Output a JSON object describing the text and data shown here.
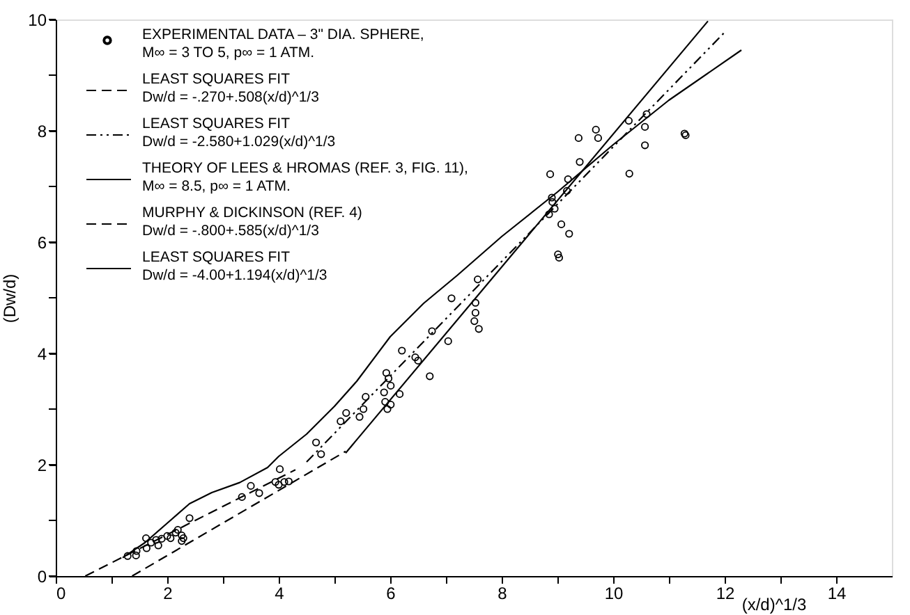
{
  "chart_data": {
    "type": "scatter",
    "xlabel": "(x/d)^1/3",
    "ylabel": "(Dw/d)",
    "xlim": [
      0,
      15
    ],
    "ylim": [
      0,
      10
    ],
    "xticks": [
      0,
      {
        "value": 1,
        "label": null
      },
      2,
      {
        "value": 3,
        "label": null
      },
      4,
      {
        "value": 5,
        "label": null
      },
      6,
      {
        "value": 7,
        "label": null
      },
      8,
      {
        "value": 9,
        "label": null
      },
      10,
      {
        "value": 11,
        "label": null
      },
      12,
      {
        "value": 13,
        "label": null
      },
      14
    ],
    "yticks": [
      0,
      {
        "value": 1,
        "label": null
      },
      2,
      {
        "value": 3,
        "label": null
      },
      4,
      {
        "value": 5,
        "label": null
      },
      6,
      {
        "value": 7,
        "label": null
      },
      8,
      {
        "value": 9,
        "label": null
      },
      10
    ],
    "grid": false,
    "legend": "top left",
    "series": [
      {
        "name": "EXPERIMENTAL DATA – 3\" DIA. SPHERE,\nM∞ = 3 TO 5, p∞ = 1 ATM.",
        "marker": "circle",
        "color": "#000000",
        "x": [
          1.29,
          1.45,
          1.44,
          1.62,
          1.63,
          1.71,
          1.8,
          1.84,
          1.9,
          2.0,
          2.06,
          2.19,
          2.15,
          2.26,
          2.29,
          2.26,
          2.4,
          3.34,
          3.5,
          3.65,
          3.94,
          4.02,
          4.0,
          4.1,
          4.18,
          4.67,
          4.76,
          5.11,
          5.21,
          5.45,
          5.52,
          5.56,
          5.89,
          5.91,
          5.93,
          5.97,
          6.01,
          5.95,
          6.01,
          6.17,
          6.21,
          6.45,
          6.5,
          6.71,
          6.75,
          7.04,
          7.1,
          7.57,
          7.53,
          7.53,
          7.51,
          7.59,
          8.85,
          8.9,
          8.95,
          8.87,
          8.91,
          9.07,
          9.21,
          9.01,
          9.03,
          9.17,
          9.19,
          9.4,
          9.38,
          9.69,
          9.73,
          10.29,
          10.28,
          10.57,
          10.57,
          10.6,
          11.28,
          11.3
        ],
        "values": [
          0.36,
          0.45,
          0.37,
          0.68,
          0.5,
          0.6,
          0.65,
          0.55,
          0.67,
          0.72,
          0.68,
          0.83,
          0.78,
          0.73,
          0.68,
          0.63,
          1.04,
          1.42,
          1.62,
          1.49,
          1.69,
          1.92,
          1.64,
          1.69,
          1.7,
          2.4,
          2.19,
          2.78,
          2.93,
          2.86,
          3.0,
          3.22,
          3.3,
          3.13,
          3.65,
          3.55,
          3.42,
          3.0,
          3.08,
          3.27,
          4.05,
          3.93,
          3.87,
          3.59,
          4.4,
          4.22,
          4.99,
          5.33,
          4.91,
          4.73,
          4.58,
          4.44,
          6.5,
          6.8,
          6.6,
          7.22,
          6.72,
          6.32,
          6.15,
          5.78,
          5.72,
          6.92,
          7.13,
          7.44,
          7.87,
          8.02,
          7.87,
          7.23,
          8.18,
          8.07,
          7.74,
          8.3,
          7.95,
          7.92
        ]
      },
      {
        "name": "LEAST SQUARES FIT\nDw/d = -.270+.508(x/d)^1/3",
        "type": "line",
        "line_style": "dashed",
        "color": "#000000",
        "x": [
          0.53,
          4.3
        ],
        "values": [
          0.0,
          1.91
        ]
      },
      {
        "name": "LEAST SQUARES FIT\nDw/d = -2.580+1.029(x/d)^1/3",
        "type": "line",
        "line_style": "dotted",
        "color": "#000000",
        "x": [
          4.5,
          12.0
        ],
        "values": [
          2.05,
          9.77
        ]
      },
      {
        "name": "THEORY OF LEES & HROMAS (REF. 3, FIG. 11),\nM∞ = 8.5, p∞ = 1 ATM.",
        "type": "line",
        "line_style": "solid",
        "color": "#000000",
        "x": [
          1.2,
          1.6,
          2.0,
          2.4,
          2.8,
          3.3,
          3.8,
          4.0,
          4.5,
          5.0,
          5.4,
          6.0,
          6.6,
          7.2,
          8.0,
          9.0,
          10.0,
          11.0,
          12.3
        ],
        "values": [
          0.33,
          0.6,
          0.95,
          1.3,
          1.5,
          1.68,
          1.95,
          2.15,
          2.55,
          3.05,
          3.5,
          4.3,
          4.9,
          5.4,
          6.1,
          6.9,
          7.75,
          8.55,
          9.45
        ]
      },
      {
        "name": "MURPHY & DICKINSON (REF. 4)\nDw/d = -.800+.585(x/d)^1/3",
        "type": "line",
        "line_style": "dashed",
        "color": "#000000",
        "x": [
          1.37,
          5.2
        ],
        "values": [
          0.0,
          2.24
        ]
      },
      {
        "name": "LEAST SQUARES FIT\nDw/d = -4.00+1.194(x/d)^1/3",
        "type": "line",
        "line_style": "solid",
        "color": "#000000",
        "x": [
          5.2,
          11.7
        ],
        "values": [
          2.21,
          9.97
        ]
      }
    ]
  }
}
